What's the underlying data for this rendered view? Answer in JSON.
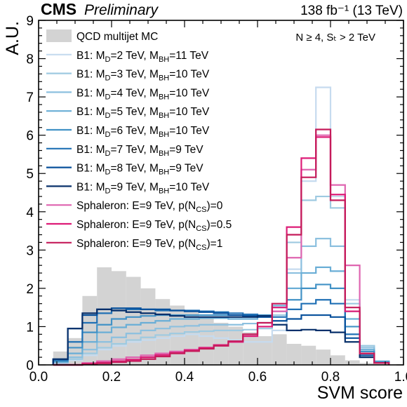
{
  "chart_data": {
    "type": "line",
    "header_left_bold": "CMS",
    "header_left_italic": "Preliminary",
    "header_right": "138 fb⁻¹ (13 TeV)",
    "selection_label": "N ≥ 4, Sₜ > 2 TeV",
    "xlabel": "SVM score",
    "ylabel": "A.U.",
    "xlim": [
      0.0,
      1.0
    ],
    "ylim": [
      0,
      9
    ],
    "x_ticks": [
      "0.0",
      "0.2",
      "0.4",
      "0.6",
      "0.8",
      "1.0"
    ],
    "y_ticks": [
      "0",
      "1",
      "2",
      "3",
      "4",
      "5",
      "6",
      "7",
      "8",
      "9"
    ],
    "bin_edges": [
      0.04,
      0.08,
      0.12,
      0.16,
      0.2,
      0.24,
      0.28,
      0.32,
      0.36,
      0.4,
      0.44,
      0.48,
      0.52,
      0.56,
      0.6,
      0.64,
      0.68,
      0.72,
      0.76,
      0.8,
      0.84,
      0.88,
      0.92,
      0.96
    ],
    "background": {
      "name": "QCD multijet MC",
      "color": "#d3d3d3",
      "values": [
        0.35,
        0.7,
        1.8,
        2.55,
        2.45,
        2.3,
        2.0,
        1.72,
        1.55,
        1.4,
        1.25,
        1.1,
        1.0,
        0.85,
        0.75,
        0.8,
        0.55,
        0.5,
        0.4,
        0.25,
        0.12,
        0.05,
        0.02
      ]
    },
    "series": [
      {
        "name": "B1: M_D=2 TeV, M_BH=11 TeV",
        "color": "#c6dbef",
        "values": [
          0.05,
          0.12,
          0.25,
          0.4,
          0.5,
          0.6,
          0.65,
          0.7,
          0.75,
          0.8,
          0.75,
          0.7,
          0.65,
          0.6,
          0.6,
          0.9,
          2.5,
          4.8,
          7.25,
          4.4,
          1.7,
          0.5,
          0.1
        ]
      },
      {
        "name": "B1: M_D=3 TeV, M_BH=10 TeV",
        "color": "#9ecae1",
        "values": [
          0.05,
          0.15,
          0.3,
          0.45,
          0.55,
          0.65,
          0.72,
          0.78,
          0.82,
          0.86,
          0.88,
          0.9,
          0.9,
          0.92,
          0.95,
          1.3,
          3.2,
          4.3,
          4.4,
          4.1,
          1.6,
          0.5,
          0.1
        ]
      },
      {
        "name": "B1: M_D=4 TeV, M_BH=10 TeV",
        "color": "#8cc0df",
        "values": [
          0.06,
          0.2,
          0.4,
          0.6,
          0.72,
          0.82,
          0.9,
          0.95,
          1.0,
          1.02,
          1.05,
          1.05,
          1.05,
          1.08,
          1.1,
          1.5,
          2.4,
          3.1,
          3.3,
          3.1,
          1.4,
          0.45,
          0.1
        ]
      },
      {
        "name": "B1: M_D=5 TeV, M_BH=10 TeV",
        "color": "#6aaed6",
        "values": [
          0.08,
          0.3,
          0.6,
          0.85,
          0.98,
          1.05,
          1.1,
          1.15,
          1.2,
          1.2,
          1.22,
          1.22,
          1.2,
          1.2,
          1.25,
          1.55,
          2.0,
          2.4,
          2.55,
          2.45,
          1.2,
          0.4,
          0.08
        ]
      },
      {
        "name": "B1: M_D=6 TeV, M_BH=10 TeV",
        "color": "#4292c6",
        "values": [
          0.1,
          0.45,
          0.85,
          1.05,
          1.2,
          1.25,
          1.28,
          1.3,
          1.3,
          1.3,
          1.3,
          1.3,
          1.3,
          1.3,
          1.3,
          1.4,
          1.7,
          2.0,
          2.1,
          2.0,
          1.0,
          0.35,
          0.08
        ]
      },
      {
        "name": "B1: M_D=7 TeV, M_BH=9 TeV",
        "color": "#2171b5",
        "values": [
          0.12,
          0.6,
          1.1,
          1.35,
          1.42,
          1.45,
          1.45,
          1.42,
          1.42,
          1.42,
          1.4,
          1.38,
          1.35,
          1.32,
          1.28,
          1.25,
          1.45,
          1.6,
          1.7,
          1.6,
          0.8,
          0.3,
          0.06
        ]
      },
      {
        "name": "B1: M_D=8 TeV, M_BH=9 TeV",
        "color": "#08519c",
        "values": [
          0.15,
          0.95,
          1.3,
          1.45,
          1.48,
          1.48,
          1.45,
          1.45,
          1.42,
          1.4,
          1.38,
          1.35,
          1.3,
          1.28,
          1.25,
          1.15,
          1.2,
          1.3,
          1.3,
          1.25,
          0.7,
          0.25,
          0.05
        ]
      },
      {
        "name": "B1: M_D=9 TeV, M_BH=10 TeV",
        "color": "#08306b",
        "values": [
          0.15,
          0.95,
          1.35,
          1.45,
          1.42,
          1.38,
          1.35,
          1.32,
          1.28,
          1.25,
          1.25,
          1.25,
          1.25,
          1.25,
          1.28,
          1.05,
          0.9,
          0.92,
          0.9,
          0.85,
          0.6,
          0.2,
          0.05
        ]
      },
      {
        "name": "Sphaleron: E=9 TeV, p(N_CS)=0",
        "color": "#df65b0",
        "values": [
          0.0,
          0.0,
          0.05,
          0.1,
          0.15,
          0.2,
          0.25,
          0.3,
          0.35,
          0.4,
          0.45,
          0.5,
          0.6,
          0.75,
          1.0,
          1.4,
          2.8,
          5.1,
          6.0,
          4.7,
          2.6,
          0.3,
          0.05
        ]
      },
      {
        "name": "Sphaleron: E=9 TeV, p(N_CS)=0.5",
        "color": "#dd1c77",
        "values": [
          0.0,
          0.0,
          0.03,
          0.06,
          0.1,
          0.14,
          0.2,
          0.26,
          0.32,
          0.38,
          0.45,
          0.52,
          0.6,
          0.75,
          1.0,
          1.5,
          3.6,
          5.4,
          5.95,
          4.45,
          1.4,
          0.3,
          0.05
        ]
      },
      {
        "name": "Sphaleron: E=9 TeV, p(N_CS)=1",
        "color": "#c51b5a",
        "values": [
          0.0,
          0.0,
          0.02,
          0.04,
          0.07,
          0.1,
          0.15,
          0.22,
          0.3,
          0.36,
          0.42,
          0.5,
          0.62,
          0.8,
          1.1,
          1.6,
          3.4,
          4.9,
          6.15,
          4.3,
          1.5,
          0.3,
          0.05
        ]
      }
    ],
    "legend_placement": "top-left",
    "legend_labels": [
      {
        "pre": "QCD multijet MC"
      },
      {
        "pre": "B1: M",
        "sub1": "D",
        "mid": "=2 TeV, M",
        "sub2": "BH",
        "post": "=11 TeV"
      },
      {
        "pre": "B1: M",
        "sub1": "D",
        "mid": "=3 TeV, M",
        "sub2": "BH",
        "post": "=10 TeV"
      },
      {
        "pre": "B1: M",
        "sub1": "D",
        "mid": "=4 TeV, M",
        "sub2": "BH",
        "post": "=10 TeV"
      },
      {
        "pre": "B1: M",
        "sub1": "D",
        "mid": "=5 TeV, M",
        "sub2": "BH",
        "post": "=10 TeV"
      },
      {
        "pre": "B1: M",
        "sub1": "D",
        "mid": "=6 TeV, M",
        "sub2": "BH",
        "post": "=10 TeV"
      },
      {
        "pre": "B1: M",
        "sub1": "D",
        "mid": "=7 TeV, M",
        "sub2": "BH",
        "post": "=9 TeV"
      },
      {
        "pre": "B1: M",
        "sub1": "D",
        "mid": "=8 TeV, M",
        "sub2": "BH",
        "post": "=9 TeV"
      },
      {
        "pre": "B1: M",
        "sub1": "D",
        "mid": "=9 TeV, M",
        "sub2": "BH",
        "post": "=10 TeV"
      },
      {
        "pre": "Sphaleron: E=9 TeV, p(N",
        "sub1": "CS",
        "mid": ")=0"
      },
      {
        "pre": "Sphaleron: E=9 TeV, p(N",
        "sub1": "CS",
        "mid": ")=0.5"
      },
      {
        "pre": "Sphaleron: E=9 TeV, p(N",
        "sub1": "CS",
        "mid": ")=1"
      }
    ]
  }
}
